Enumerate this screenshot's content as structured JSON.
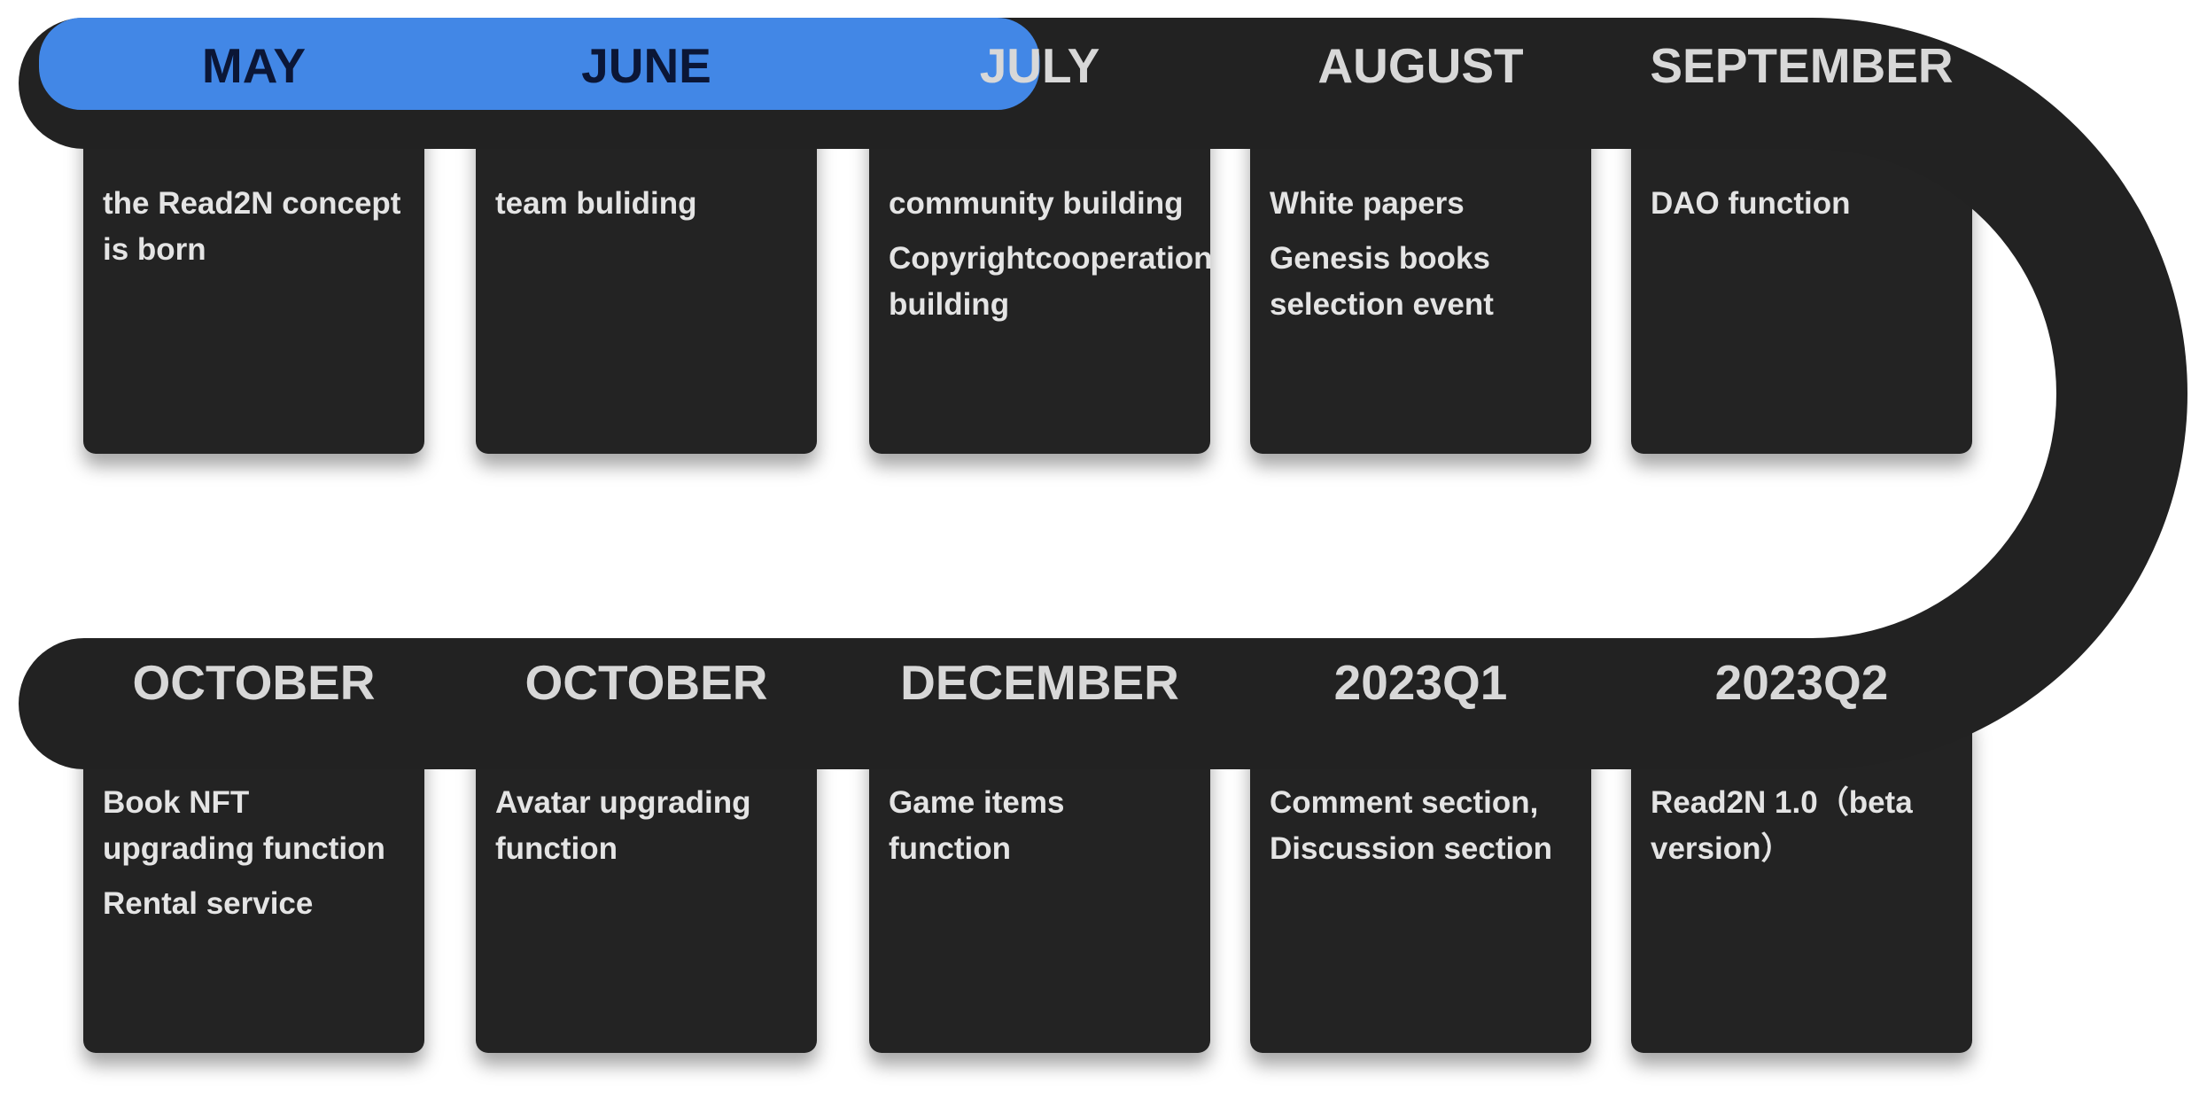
{
  "colors": {
    "track": "#222222",
    "progress": "#4287e6",
    "card": "#232323",
    "card_text": "#e4e4e4",
    "label": "#d8d8d8",
    "label_done": "#0b1636"
  },
  "progress": {
    "completed_milestones": 2.5,
    "total_top_milestones": 5
  },
  "top_row": [
    {
      "label": "MAY",
      "items": [
        "the Read2N concept is born"
      ],
      "done": true
    },
    {
      "label": "JUNE",
      "items": [
        "team buliding"
      ],
      "done": true
    },
    {
      "label": "JULY",
      "items": [
        "community building",
        "Copyrightcooperation building"
      ],
      "done": false
    },
    {
      "label": "AUGUST",
      "items": [
        "White papers",
        "Genesis books selection event"
      ],
      "done": false
    },
    {
      "label": "SEPTEMBER",
      "items": [
        "DAO function"
      ],
      "done": false
    }
  ],
  "bottom_row": [
    {
      "label": "OCTOBER",
      "items": [
        "Book NFT upgrading function",
        "Rental service"
      ]
    },
    {
      "label": "OCTOBER",
      "items": [
        "Avatar upgrading function"
      ]
    },
    {
      "label": "DECEMBER",
      "items": [
        "Game items function"
      ]
    },
    {
      "label": "2023Q1",
      "items": [
        "Comment section, Discussion section"
      ]
    },
    {
      "label": "2023Q2",
      "items": [
        "Read2N 1.0（beta version）"
      ]
    }
  ]
}
